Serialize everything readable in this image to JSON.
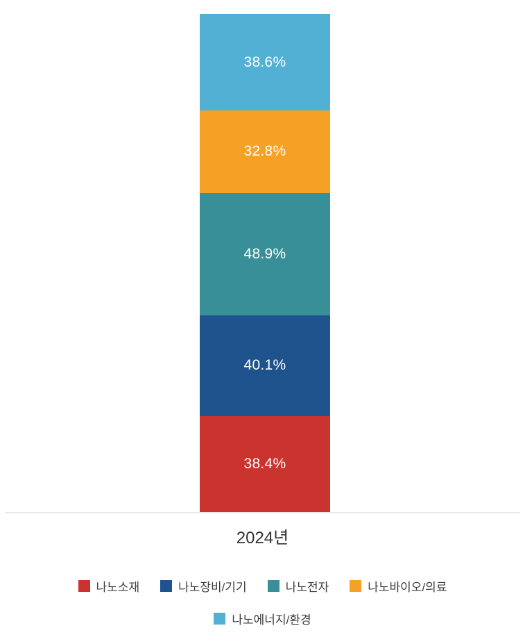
{
  "chart_data": {
    "type": "bar",
    "stacked": true,
    "orientation": "vertical",
    "title": "",
    "xlabel": "",
    "ylabel": "",
    "categories": [
      "2024년"
    ],
    "series": [
      {
        "name": "나노소재",
        "values": [
          38.4
        ],
        "color": "#cb342e"
      },
      {
        "name": "나노장비/기기",
        "values": [
          40.1
        ],
        "color": "#1f538d"
      },
      {
        "name": "나노전자",
        "values": [
          48.9
        ],
        "color": "#398f97"
      },
      {
        "name": "나노바이오/의료",
        "values": [
          32.8
        ],
        "color": "#f4a126"
      },
      {
        "name": "나노에너지/환경",
        "values": [
          38.6
        ],
        "color": "#51b0d3"
      }
    ],
    "data_labels": [
      "38.4%",
      "40.1%",
      "48.9%",
      "32.8%",
      "38.6%"
    ],
    "data_label_suffix": "%",
    "data_label_color": "#ffffff",
    "grid": false,
    "axis_line_color": "#e8e8e8",
    "x_label_color": "#333333",
    "legend_position": "bottom",
    "legend_rows": [
      [
        0,
        1,
        2,
        3
      ],
      [
        4
      ]
    ],
    "legend_text_color": "#3e3e3e"
  }
}
